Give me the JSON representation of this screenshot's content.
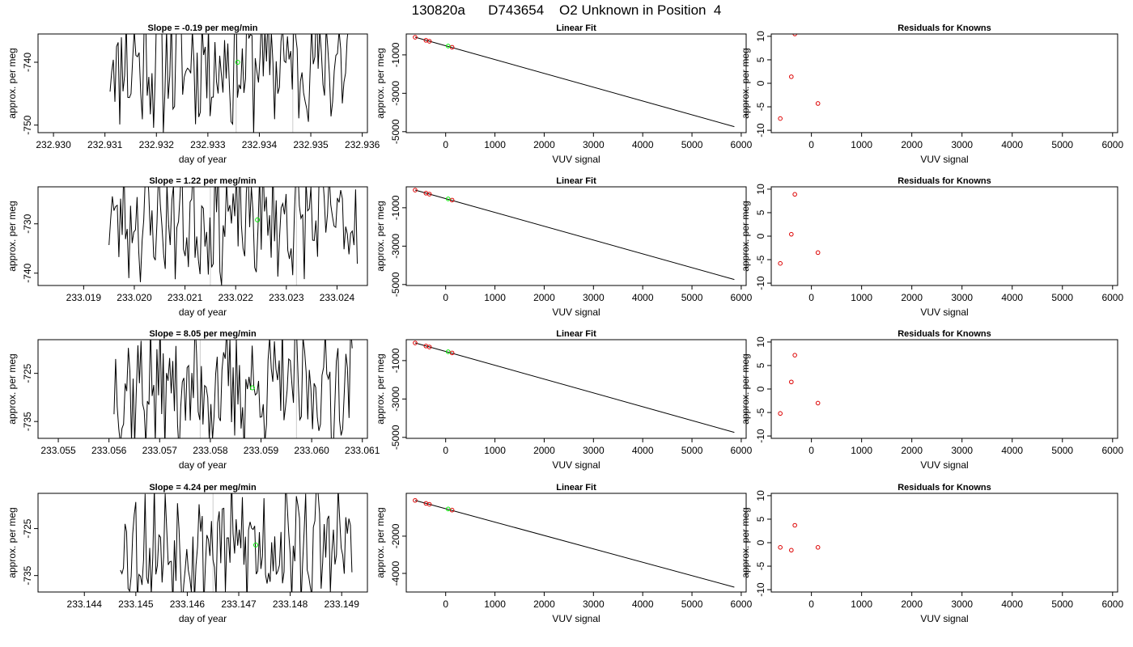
{
  "page": {
    "title": "130820a      D743654    O2 Unknown in Position  4"
  },
  "chart_data": [
    {
      "type": "line",
      "title": "Slope =  -0.19  per meg/min",
      "xlabel": "day of year",
      "ylabel": "approx. per meg",
      "xlim": [
        232.9297,
        232.9361
      ],
      "ylim": [
        -751.2,
        -735.5
      ],
      "xticks": [
        "232.930",
        "232.931",
        "232.932",
        "232.933",
        "232.934",
        "232.935",
        "232.936"
      ],
      "yticks": [
        "-740",
        "-750"
      ],
      "xtick_values": [
        232.93,
        232.931,
        232.932,
        232.933,
        232.934,
        232.935,
        232.936
      ],
      "ytick_values": [
        -740,
        -750
      ],
      "start_x": 232.9311,
      "end_x": 232.9358,
      "vlines": [
        232.93355,
        232.93465
      ],
      "point": [
        232.93358,
        -740.0
      ],
      "seed": 11,
      "wobble": 9
    },
    {
      "type": "scatter",
      "title": "Linear Fit",
      "xlabel": "VUV signal",
      "ylabel": "approx. per meg",
      "xlim": [
        -800,
        6100
      ],
      "ylim": [
        -5050,
        90
      ],
      "xticks": [
        "0",
        "1000",
        "2000",
        "3000",
        "4000",
        "5000",
        "6000"
      ],
      "yticks": [
        "-1000",
        "-3000",
        "-5000"
      ],
      "xtick_values": [
        0,
        1000,
        2000,
        3000,
        4000,
        5000,
        6000
      ],
      "ytick_values": [
        -1000,
        -3000,
        -5000
      ],
      "fit_line": [
        [
          -620,
          -80
        ],
        [
          5860,
          -4740
        ]
      ],
      "knowns": [
        [
          -620,
          -80
        ],
        [
          -400,
          -240
        ],
        [
          -330,
          -290
        ],
        [
          130,
          -600
        ]
      ],
      "unknown": [
        50,
        -540
      ]
    },
    {
      "type": "scatter",
      "title": "Residuals for Knowns",
      "xlabel": "VUV signal",
      "ylabel": "approx. per meg",
      "xlim": [
        -800,
        6100
      ],
      "ylim": [
        -10.5,
        10.5
      ],
      "xticks": [
        "0",
        "1000",
        "2000",
        "3000",
        "4000",
        "5000",
        "6000"
      ],
      "yticks": [
        "-10",
        "-5",
        "0",
        "5",
        "10"
      ],
      "xtick_values": [
        0,
        1000,
        2000,
        3000,
        4000,
        5000,
        6000
      ],
      "ytick_values": [
        -10,
        -5,
        0,
        5,
        10
      ],
      "points": [
        [
          -620,
          -7.5
        ],
        [
          -400,
          1.4
        ],
        [
          -330,
          10.5
        ],
        [
          130,
          -4.3
        ]
      ]
    },
    {
      "type": "line",
      "title": "Slope =  1.22  per meg/min",
      "xlabel": "day of year",
      "ylabel": "approx. per meg",
      "xlim": [
        233.0181,
        233.0246
      ],
      "ylim": [
        -742.5,
        -722.5
      ],
      "xticks": [
        "233.019",
        "233.020",
        "233.021",
        "233.022",
        "233.023",
        "233.024"
      ],
      "yticks": [
        "-730",
        "-740"
      ],
      "xtick_values": [
        233.019,
        233.02,
        233.021,
        233.022,
        233.023,
        233.024
      ],
      "ytick_values": [
        -730,
        -740
      ],
      "start_x": 233.0195,
      "end_x": 233.0244,
      "vlines": [
        233.0215,
        233.0232
      ],
      "point": [
        233.02243,
        -729.2
      ],
      "seed": 23,
      "wobble": 10
    },
    {
      "type": "scatter",
      "title": "Linear Fit",
      "xlabel": "VUV signal",
      "ylabel": "approx. per meg",
      "xlim": [
        -800,
        6100
      ],
      "ylim": [
        -5050,
        90
      ],
      "xticks": [
        "0",
        "1000",
        "2000",
        "3000",
        "4000",
        "5000",
        "6000"
      ],
      "yticks": [
        "-1000",
        "-3000",
        "-5000"
      ],
      "xtick_values": [
        0,
        1000,
        2000,
        3000,
        4000,
        5000,
        6000
      ],
      "ytick_values": [
        -1000,
        -3000,
        -5000
      ],
      "fit_line": [
        [
          -620,
          -80
        ],
        [
          5860,
          -4740
        ]
      ],
      "knowns": [
        [
          -620,
          -80
        ],
        [
          -400,
          -240
        ],
        [
          -330,
          -290
        ],
        [
          130,
          -600
        ]
      ],
      "unknown": [
        50,
        -540
      ]
    },
    {
      "type": "scatter",
      "title": "Residuals for Knowns",
      "xlabel": "VUV signal",
      "ylabel": "approx. per meg",
      "xlim": [
        -800,
        6100
      ],
      "ylim": [
        -10.5,
        10.5
      ],
      "xticks": [
        "0",
        "1000",
        "2000",
        "3000",
        "4000",
        "5000",
        "6000"
      ],
      "yticks": [
        "-10",
        "-5",
        "0",
        "5",
        "10"
      ],
      "xtick_values": [
        0,
        1000,
        2000,
        3000,
        4000,
        5000,
        6000
      ],
      "ytick_values": [
        -10,
        -5,
        0,
        5,
        10
      ],
      "points": [
        [
          -620,
          -5.8
        ],
        [
          -400,
          0.4
        ],
        [
          -330,
          8.9
        ],
        [
          130,
          -3.5
        ]
      ]
    },
    {
      "type": "line",
      "title": "Slope =  8.05  per meg/min",
      "xlabel": "day of year",
      "ylabel": "approx. per meg",
      "xlim": [
        233.0546,
        233.0611
      ],
      "ylim": [
        -738.5,
        -718.0
      ],
      "xticks": [
        "233.055",
        "233.056",
        "233.057",
        "233.058",
        "233.059",
        "233.060",
        "233.061"
      ],
      "yticks": [
        "-725",
        "-735"
      ],
      "xtick_values": [
        233.055,
        233.056,
        233.057,
        233.058,
        233.059,
        233.06,
        233.061
      ],
      "ytick_values": [
        -725,
        -735
      ],
      "start_x": 233.0561,
      "end_x": 233.0608,
      "vlines": [
        233.0578,
        233.0597
      ],
      "point": [
        233.05883,
        -728.0
      ],
      "seed": 37,
      "wobble": 11
    },
    {
      "type": "scatter",
      "title": "Linear Fit",
      "xlabel": "VUV signal",
      "ylabel": "approx. per meg",
      "xlim": [
        -800,
        6100
      ],
      "ylim": [
        -5050,
        90
      ],
      "xticks": [
        "0",
        "1000",
        "2000",
        "3000",
        "4000",
        "5000",
        "6000"
      ],
      "yticks": [
        "-1000",
        "-3000",
        "-5000"
      ],
      "xtick_values": [
        0,
        1000,
        2000,
        3000,
        4000,
        5000,
        6000
      ],
      "ytick_values": [
        -1000,
        -3000,
        -5000
      ],
      "fit_line": [
        [
          -620,
          -80
        ],
        [
          5860,
          -4740
        ]
      ],
      "knowns": [
        [
          -620,
          -80
        ],
        [
          -400,
          -240
        ],
        [
          -330,
          -290
        ],
        [
          130,
          -600
        ]
      ],
      "unknown": [
        50,
        -540
      ]
    },
    {
      "type": "scatter",
      "title": "Residuals for Knowns",
      "xlabel": "VUV signal",
      "ylabel": "approx. per meg",
      "xlim": [
        -800,
        6100
      ],
      "ylim": [
        -10.5,
        10.5
      ],
      "xticks": [
        "0",
        "1000",
        "2000",
        "3000",
        "4000",
        "5000",
        "6000"
      ],
      "yticks": [
        "-10",
        "-5",
        "0",
        "5",
        "10"
      ],
      "xtick_values": [
        0,
        1000,
        2000,
        3000,
        4000,
        5000,
        6000
      ],
      "ytick_values": [
        -10,
        -5,
        0,
        5,
        10
      ],
      "points": [
        [
          -620,
          -5.2
        ],
        [
          -400,
          1.5
        ],
        [
          -330,
          7.2
        ],
        [
          130,
          -3.0
        ]
      ]
    },
    {
      "type": "line",
      "title": "Slope =  4.24  per meg/min",
      "xlabel": "day of year",
      "ylabel": "approx. per meg",
      "xlim": [
        233.1431,
        233.1495
      ],
      "ylim": [
        -738.5,
        -717.5
      ],
      "xticks": [
        "233.144",
        "233.145",
        "233.146",
        "233.147",
        "233.148",
        "233.149"
      ],
      "yticks": [
        "-725",
        "-735"
      ],
      "xtick_values": [
        233.144,
        233.145,
        233.146,
        233.147,
        233.148,
        233.149
      ],
      "ytick_values": [
        -725,
        -735
      ],
      "start_x": 233.1447,
      "end_x": 233.1492,
      "vlines": [
        233.1465
      ],
      "point": [
        233.14733,
        -728.5
      ],
      "seed": 53,
      "wobble": 11
    },
    {
      "type": "scatter",
      "title": "Linear Fit",
      "xlabel": "VUV signal",
      "ylabel": "approx. per meg",
      "xlim": [
        -800,
        6100
      ],
      "ylim": [
        -5000,
        300
      ],
      "xticks": [
        "0",
        "1000",
        "2000",
        "3000",
        "4000",
        "5000",
        "6000"
      ],
      "yticks": [
        "-2000",
        "-4000"
      ],
      "xtick_values": [
        0,
        1000,
        2000,
        3000,
        4000,
        5000,
        6000
      ],
      "ytick_values": [
        -2000,
        -4000
      ],
      "fit_line": [
        [
          -620,
          -80
        ],
        [
          5860,
          -4740
        ]
      ],
      "knowns": [
        [
          -620,
          -80
        ],
        [
          -400,
          -240
        ],
        [
          -330,
          -290
        ],
        [
          130,
          -600
        ]
      ],
      "unknown": [
        50,
        -540
      ]
    },
    {
      "type": "scatter",
      "title": "Residuals for Knowns",
      "xlabel": "VUV signal",
      "ylabel": "approx. per meg",
      "xlim": [
        -800,
        6100
      ],
      "ylim": [
        -10.5,
        10.5
      ],
      "xticks": [
        "0",
        "1000",
        "2000",
        "3000",
        "4000",
        "5000",
        "6000"
      ],
      "yticks": [
        "-10",
        "-5",
        "0",
        "5",
        "10"
      ],
      "xtick_values": [
        0,
        1000,
        2000,
        3000,
        4000,
        5000,
        6000
      ],
      "ytick_values": [
        -10,
        -5,
        0,
        5,
        10
      ],
      "points": [
        [
          -620,
          -1.0
        ],
        [
          -400,
          -1.6
        ],
        [
          -330,
          3.7
        ],
        [
          130,
          -1.0
        ]
      ]
    }
  ],
  "colors": {
    "trace": "#000000",
    "unknown_point": "#00ee00",
    "known_point": "#dd0000",
    "interval_line": "#cccccc",
    "fit_line": "#000000"
  }
}
